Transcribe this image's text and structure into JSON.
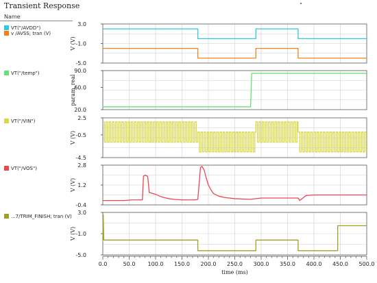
{
  "window": {
    "title": "Transient Response",
    "name_header": "Name"
  },
  "colors": {
    "cyan": "#30c8dc",
    "orange": "#f0821e",
    "green": "#66e07a",
    "yellow": "#d8d848",
    "red": "#e84850",
    "olive": "#a0a024",
    "grid": "#cfcfcf"
  },
  "chart_data": {
    "type": "line",
    "xlabel": "time (ms)",
    "xlim": [
      0,
      500
    ],
    "x_ticks": [
      "0.0",
      "50.0",
      "100.0",
      "150.0",
      "200.0",
      "250.0",
      "300.0",
      "350.0",
      "400.0",
      "450.0",
      "500.0"
    ],
    "panels": [
      {
        "ylabel": "V (V)",
        "ylim": [
          -5,
          3
        ],
        "y_ticks": [
          "3.0",
          "-1.0",
          "-5.0"
        ],
        "legend": [
          {
            "label": "VT(\"/AVDD\")",
            "color": "#30c8dc"
          },
          {
            "label": "v /AVSS; tran (V)",
            "color": "#f0821e"
          }
        ],
        "series": [
          {
            "name": "VT(\"/AVDD\")",
            "color": "#30c8dc",
            "x": [
              0,
              180,
              180,
              290,
              290,
              370,
              370,
              500
            ],
            "y": [
              2.0,
              2.0,
              0.0,
              0.0,
              2.0,
              2.0,
              0.0,
              0.0
            ]
          },
          {
            "name": "v /AVSS; tran (V)",
            "color": "#f0821e",
            "x": [
              0,
              180,
              180,
              290,
              290,
              370,
              370,
              500
            ],
            "y": [
              -2.0,
              -2.0,
              -4.0,
              -4.0,
              -2.0,
              -2.0,
              -4.0,
              -4.0
            ]
          }
        ]
      },
      {
        "ylabel": "param_real",
        "ylim": [
          20,
          90
        ],
        "y_ticks": [
          "90.0",
          "60.0",
          "20.0"
        ],
        "legend": [
          {
            "label": "VT(\"/temp\")",
            "color": "#66e07a"
          }
        ],
        "series": [
          {
            "name": "VT(\"/temp\")",
            "color": "#66e07a",
            "x": [
              0,
              280,
              282,
              500
            ],
            "y": [
              25,
              25,
              85,
              85
            ]
          }
        ]
      },
      {
        "ylabel": "V (V)",
        "ylim": [
          -4.5,
          2.5
        ],
        "y_ticks": [
          "2.5",
          "-0.5",
          "-4.5"
        ],
        "legend": [
          {
            "label": "VT(\"/VIN\")",
            "color": "#d8d848"
          }
        ],
        "series": [
          {
            "name": "VT(\"/VIN\")",
            "color": "#d8d848",
            "waveform": "square",
            "segments": [
              {
                "x0": 0,
                "x1": 180,
                "hi": 1.8,
                "lo": -1.8,
                "period": 6
              },
              {
                "x0": 180,
                "x1": 290,
                "hi": 0.0,
                "lo": -3.5,
                "period": 6
              },
              {
                "x0": 290,
                "x1": 370,
                "hi": 1.8,
                "lo": -1.8,
                "period": 6
              },
              {
                "x0": 370,
                "x1": 500,
                "hi": 0.0,
                "lo": -3.5,
                "period": 6
              }
            ]
          }
        ]
      },
      {
        "ylabel": "V (V)",
        "ylim": [
          -0.4,
          2.8
        ],
        "y_ticks": [
          "2.8",
          "1.2",
          "-0.4"
        ],
        "legend": [
          {
            "label": "VT(\"/VOS\")",
            "color": "#e84850"
          }
        ],
        "series": [
          {
            "name": "VT(\"/VOS\")",
            "color": "#e84850",
            "x": [
              0,
              40,
              55,
              75,
              77,
              80,
              85,
              88,
              92,
              100,
              108,
              115,
              125,
              135,
              150,
              175,
              180,
              185,
              188,
              192,
              195,
              200,
              205,
              210,
              220,
              230,
              250,
              280,
              300,
              370,
              373,
              376,
              385,
              400,
              500
            ],
            "y": [
              -0.05,
              -0.05,
              0.0,
              0.0,
              1.9,
              2.0,
              1.9,
              0.6,
              0.55,
              0.45,
              0.3,
              0.2,
              0.1,
              0.05,
              0.0,
              0.0,
              0.05,
              2.6,
              2.7,
              2.4,
              1.9,
              1.2,
              0.8,
              0.5,
              0.3,
              0.2,
              0.1,
              0.05,
              0.15,
              0.15,
              -0.05,
              0.05,
              0.35,
              0.4,
              0.4
            ]
          }
        ]
      },
      {
        "ylabel": "V (V)",
        "ylim": [
          -5,
          3
        ],
        "y_ticks": [
          "3.0",
          "-1.0",
          "-5.0"
        ],
        "legend": [
          {
            "label": "...7/TRIM_FINISH; tran (V)",
            "color": "#a0a024"
          }
        ],
        "series": [
          {
            "name": "...7/TRIM_FINISH; tran (V)",
            "color": "#a0a024",
            "x": [
              0,
              0.8,
              1.8,
              180,
              180,
              290,
              290,
              370,
              370,
              445,
              445,
              500
            ],
            "y": [
              -2.2,
              2.6,
              -2.2,
              -2.2,
              -4.2,
              -4.2,
              -2.2,
              -2.2,
              -4.2,
              -4.2,
              0.5,
              0.5
            ]
          }
        ]
      }
    ]
  }
}
